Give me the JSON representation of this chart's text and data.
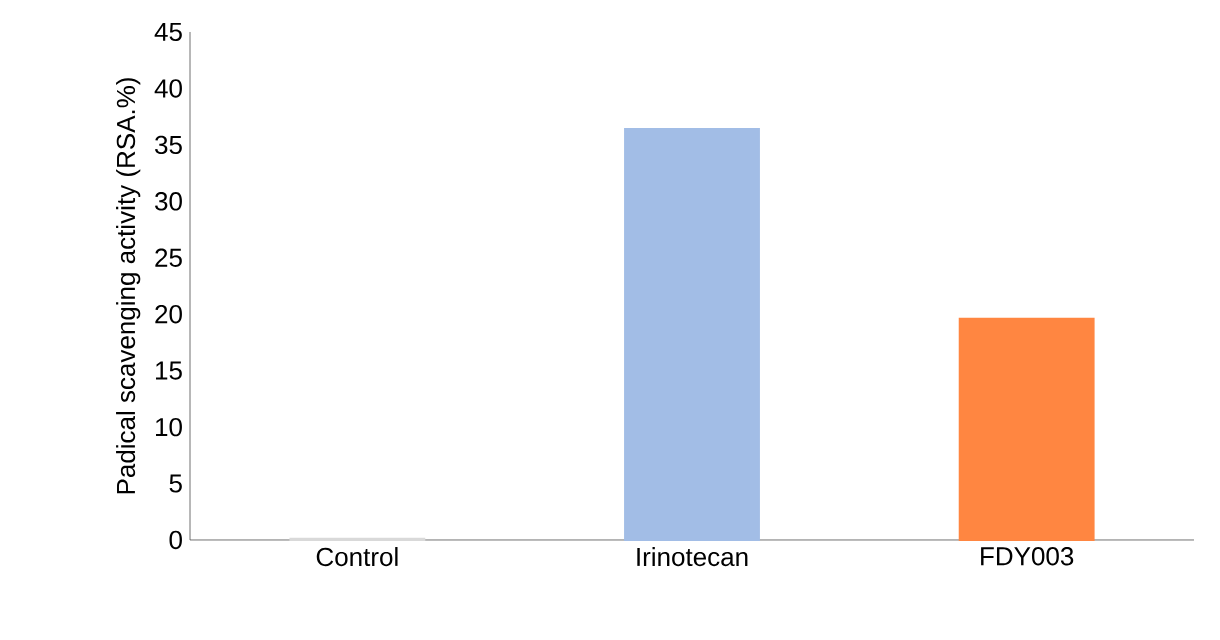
{
  "chart_data": {
    "type": "bar",
    "ylabel": "Padical scavenging activity (RSA.%)",
    "categories": [
      "Control",
      "Irinotecan",
      "FDY003"
    ],
    "values": [
      0.1,
      36.4,
      19.6
    ],
    "colors": [
      "#d9d9d9",
      "#a2bde6",
      "#ff8641"
    ],
    "ylim": [
      0,
      45
    ],
    "yticks": [
      0,
      5,
      10,
      15,
      20,
      25,
      30,
      35,
      40,
      45
    ],
    "grid": false
  }
}
